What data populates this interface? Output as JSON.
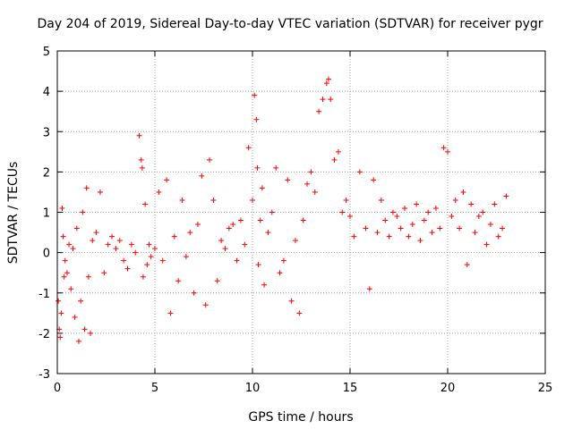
{
  "chart_data": {
    "type": "scatter",
    "title": "Day 204 of 2019, Sidereal Day-to-day VTEC variation (SDTVAR) for receiver pygr",
    "xlabel": "GPS time / hours",
    "ylabel": "SDTVAR / TECUs",
    "xlim": [
      0,
      25
    ],
    "ylim": [
      -3,
      5
    ],
    "grid": true,
    "marker": "+",
    "x_ticks": [
      0,
      5,
      10,
      15,
      20,
      25
    ],
    "y_ticks": [
      -3,
      -2,
      -1,
      0,
      1,
      2,
      3,
      4,
      5
    ],
    "x_tick_labels": [
      "0",
      "5",
      "10",
      "15",
      "20",
      "25"
    ],
    "y_tick_labels": [
      "-3",
      "-2",
      "-1",
      "0",
      "1",
      "2",
      "3",
      "4",
      "5"
    ],
    "colors": {
      "points": "#ff0000",
      "grid": "#a0a0a0",
      "axes": "#000000"
    },
    "series": [
      {
        "name": "SDTVAR",
        "x": [
          0.05,
          0.1,
          0.15,
          0.2,
          0.25,
          0.3,
          0.35,
          0.4,
          0.5,
          0.6,
          0.7,
          0.8,
          0.9,
          1.0,
          1.1,
          1.2,
          1.3,
          1.4,
          1.5,
          1.6,
          1.7,
          1.8,
          2.0,
          2.2,
          2.4,
          2.6,
          2.8,
          3.0,
          3.2,
          3.4,
          3.6,
          3.8,
          4.0,
          4.2,
          4.3,
          4.35,
          4.4,
          4.5,
          4.6,
          4.7,
          4.8,
          5.0,
          5.2,
          5.4,
          5.6,
          5.8,
          6.0,
          6.2,
          6.4,
          6.6,
          6.8,
          7.0,
          7.2,
          7.4,
          7.6,
          7.8,
          8.0,
          8.2,
          8.4,
          8.6,
          8.8,
          9.0,
          9.2,
          9.4,
          9.6,
          9.8,
          10.0,
          10.1,
          10.2,
          10.25,
          10.3,
          10.4,
          10.5,
          10.6,
          10.8,
          11.0,
          11.2,
          11.4,
          11.6,
          11.8,
          12.0,
          12.2,
          12.4,
          12.6,
          12.8,
          13.0,
          13.2,
          13.4,
          13.6,
          13.8,
          13.9,
          14.0,
          14.2,
          14.4,
          14.6,
          14.8,
          15.0,
          15.2,
          15.5,
          15.8,
          16.0,
          16.2,
          16.4,
          16.6,
          16.8,
          17.0,
          17.2,
          17.4,
          17.6,
          17.8,
          18.0,
          18.2,
          18.4,
          18.6,
          18.8,
          19.0,
          19.2,
          19.4,
          19.6,
          19.8,
          20.0,
          20.2,
          20.4,
          20.6,
          20.8,
          21.0,
          21.2,
          21.4,
          21.6,
          21.8,
          22.0,
          22.2,
          22.4,
          22.6,
          22.8,
          23.0
        ],
        "y": [
          -1.2,
          -1.9,
          -2.1,
          -1.5,
          1.1,
          0.4,
          -0.6,
          -0.2,
          -0.5,
          0.2,
          -0.9,
          0.1,
          -1.6,
          0.6,
          -2.2,
          -1.2,
          1.0,
          -1.9,
          1.6,
          -0.6,
          -2.0,
          0.3,
          0.5,
          1.5,
          -0.5,
          0.2,
          0.4,
          0.1,
          0.3,
          -0.2,
          -0.4,
          0.2,
          0.0,
          2.9,
          2.3,
          2.1,
          -0.6,
          1.2,
          -0.3,
          0.2,
          -0.1,
          0.1,
          1.5,
          -0.2,
          1.8,
          -1.5,
          0.4,
          -0.7,
          1.3,
          -0.1,
          0.5,
          -1.0,
          0.7,
          1.9,
          -1.3,
          2.3,
          1.3,
          -0.7,
          0.3,
          0.1,
          0.6,
          0.7,
          -0.2,
          0.8,
          0.2,
          2.6,
          1.3,
          3.9,
          3.3,
          2.1,
          -0.3,
          0.8,
          1.6,
          -0.8,
          0.5,
          1.0,
          2.1,
          -0.5,
          -0.2,
          1.8,
          -1.2,
          0.3,
          -1.5,
          0.8,
          1.7,
          2.0,
          1.5,
          3.5,
          3.8,
          4.2,
          4.3,
          3.8,
          2.3,
          2.5,
          1.0,
          1.3,
          0.9,
          0.4,
          2.0,
          0.6,
          -0.9,
          1.8,
          0.5,
          1.3,
          0.8,
          0.4,
          1.0,
          0.9,
          0.6,
          1.1,
          0.4,
          0.7,
          1.2,
          0.3,
          0.8,
          1.0,
          0.5,
          1.1,
          0.6,
          2.6,
          2.5,
          0.9,
          1.3,
          0.6,
          1.5,
          -0.3,
          1.2,
          0.5,
          0.9,
          1.0,
          0.2,
          0.7,
          1.2,
          0.4,
          0.6,
          1.4
        ]
      }
    ]
  }
}
